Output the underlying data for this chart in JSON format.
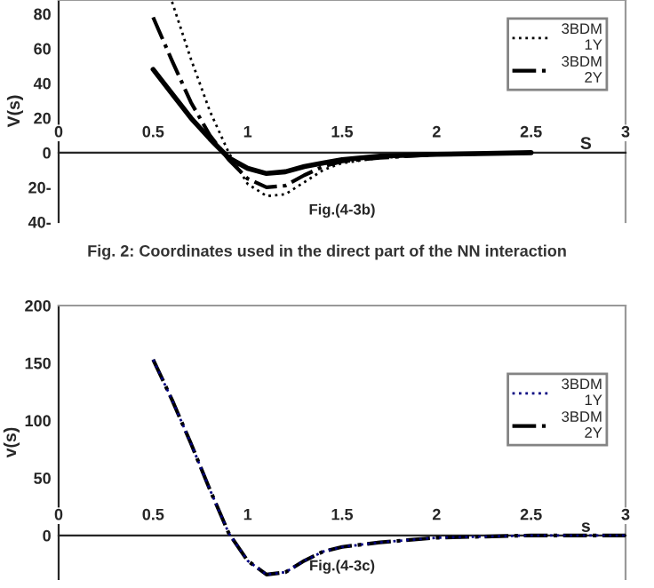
{
  "chart_data": [
    {
      "type": "line",
      "xlabel": "Fig.(4-3b)",
      "ylabel": "V(s)",
      "annotations": [
        "S",
        "Fig. 2: Coordinates used in the direct part of the NN interaction"
      ],
      "xlim": [
        0,
        3
      ],
      "ylim": [
        -40,
        88
      ],
      "xticks": [
        0,
        0.5,
        1,
        1.5,
        2,
        2.5,
        3
      ],
      "yticks": [
        {
          "value": -40,
          "label": "40-"
        },
        {
          "value": -20,
          "label": "20-"
        },
        0,
        20,
        40,
        60,
        80
      ],
      "legend": "top right",
      "grid": false,
      "series": [
        {
          "name": "3BDM\n1Y",
          "color": "#000000",
          "line_style": "dotted",
          "x": [
            0.6,
            0.7,
            0.8,
            0.9,
            1.0,
            1.1,
            1.2,
            1.3,
            1.4,
            1.5,
            1.7,
            2.0,
            2.5
          ],
          "values": [
            87,
            54,
            24,
            0,
            -18,
            -25,
            -24,
            -17,
            -10,
            -6,
            -3,
            -1,
            0
          ]
        },
        {
          "name": "3BDM\n2Y",
          "color": "#000000",
          "line_style": "dashdot",
          "x": [
            0.5,
            0.6,
            0.7,
            0.8,
            0.9,
            1.0,
            1.1,
            1.2,
            1.3,
            1.4,
            1.5,
            1.7,
            2.0,
            2.5
          ],
          "values": [
            78,
            53,
            29,
            10,
            -4,
            -15,
            -20,
            -19,
            -13,
            -8,
            -5,
            -3,
            -1,
            0
          ]
        },
        {
          "color": "#000000",
          "line_style": "solid",
          "x": [
            0.5,
            0.6,
            0.7,
            0.8,
            0.9,
            1.0,
            1.1,
            1.2,
            1.3,
            1.4,
            1.5,
            1.7,
            2.0,
            2.5
          ],
          "values": [
            48,
            34,
            20,
            8,
            -3,
            -9,
            -12,
            -11,
            -8,
            -6,
            -4,
            -2,
            -1,
            0
          ]
        }
      ]
    },
    {
      "type": "line",
      "xlabel": "Fig.(4-3c)",
      "ylabel": "v(s)",
      "annotations": [
        "s"
      ],
      "xlim": [
        0,
        3
      ],
      "ylim": [
        -38,
        200
      ],
      "xticks": [
        0,
        0.5,
        1,
        1.5,
        2,
        2.5,
        3
      ],
      "yticks": [
        0,
        50,
        100,
        150,
        200
      ],
      "legend": "right",
      "grid": false,
      "series": [
        {
          "name": "3BDM\n1Y",
          "color": "#000080",
          "line_style": "dotted",
          "x": [
            0.5,
            0.6,
            0.7,
            0.8,
            0.9,
            1.0,
            1.1,
            1.2,
            1.3,
            1.4,
            1.5,
            1.7,
            2.0,
            2.5,
            3.0
          ],
          "values": [
            153,
            118,
            80,
            40,
            2,
            -22,
            -34,
            -32,
            -22,
            -14,
            -10,
            -6,
            -2,
            0,
            0
          ]
        },
        {
          "name": "3BDM\n2Y",
          "color": "#000000",
          "line_style": "dashdot",
          "x": [
            0.5,
            0.6,
            0.7,
            0.8,
            0.9,
            1.0,
            1.1,
            1.2,
            1.3,
            1.4,
            1.5,
            1.7,
            2.0,
            2.5,
            3.0
          ],
          "values": [
            153,
            118,
            80,
            40,
            2,
            -22,
            -34,
            -32,
            -22,
            -14,
            -10,
            -6,
            -2,
            0,
            0
          ]
        }
      ]
    }
  ]
}
